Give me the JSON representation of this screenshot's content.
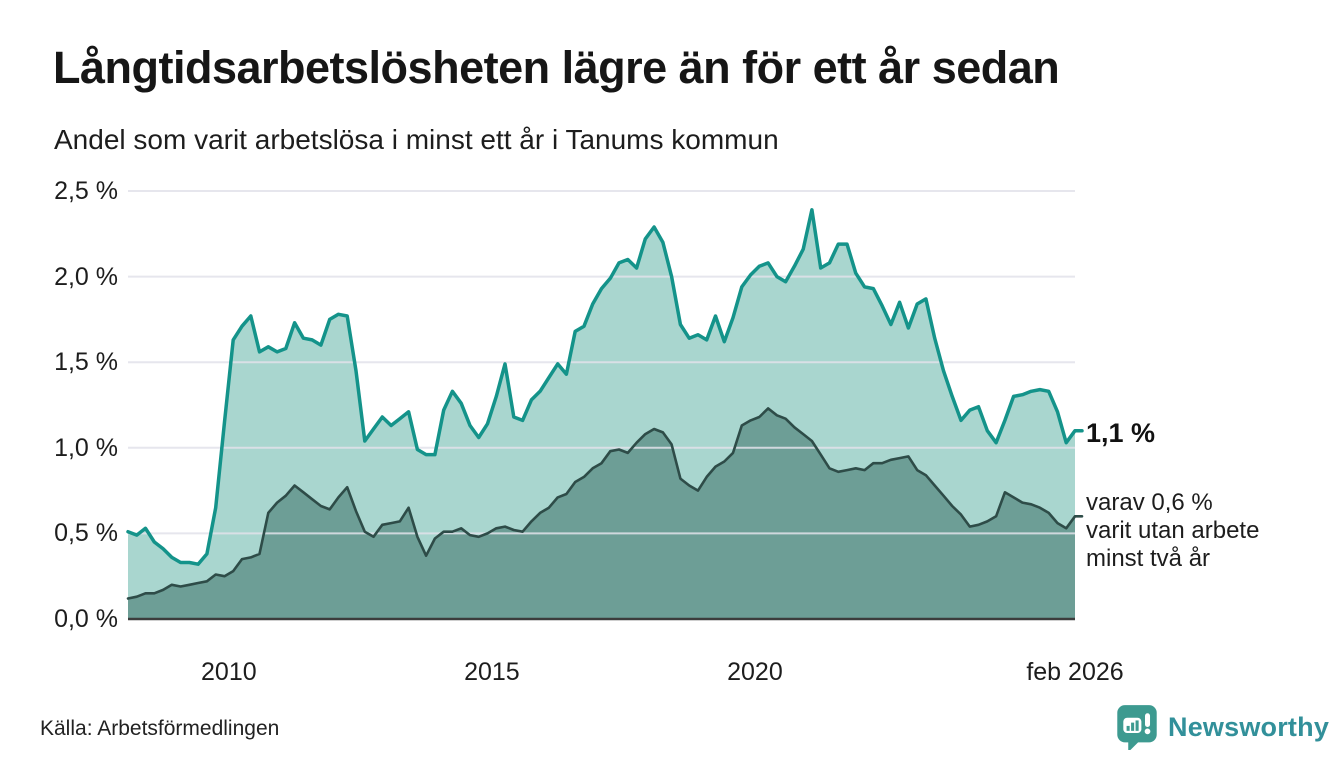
{
  "header": {
    "title": "Långtidsarbetslösheten lägre än för ett år sedan",
    "subtitle": "Andel som varit arbetslösa i minst ett år i Tanums kommun"
  },
  "annotations": {
    "end_value_total": "1,1 %",
    "end_value_two_years_lines": [
      "varav 0,6 %",
      "varit utan arbete",
      "minst två år"
    ]
  },
  "footer": {
    "source": "Källa: Arbetsförmedlingen",
    "brand": {
      "name": "Newsworthy",
      "icon": "newsworthy-speech-bubble-bar-chart-icon"
    }
  },
  "colors": {
    "total_line": "#14938a",
    "total_fill": "#a9d6cf",
    "two_year_line": "#2e4c48",
    "two_year_fill": "#6d9e96",
    "gridline": "rgba(226,226,234,0.85)",
    "baseline": "#3c3c3c",
    "text": "#1d1d1d",
    "brand_icon": "#3d9a90",
    "brand_text": "#32909a"
  },
  "chart_data": {
    "type": "area",
    "title": "Långtidsarbetslösheten lägre än för ett år sedan",
    "subtitle": "Andel som varit arbetslösa i minst ett år i Tanums kommun",
    "unit": "%",
    "grid": true,
    "x_start": "feb 2008",
    "x_end": "feb 2026",
    "sample_interval_months": 2,
    "total_months": 216,
    "x_axis": {
      "ticks": [
        {
          "label": "2010",
          "month": 23
        },
        {
          "label": "2015",
          "month": 83
        },
        {
          "label": "2020",
          "month": 143
        },
        {
          "label": "feb 2026",
          "month": 216
        }
      ]
    },
    "y_axis": {
      "min": 0,
      "max": 2.5,
      "ticks": [
        {
          "label": "2,5 %",
          "value": 2.5
        },
        {
          "label": "2,0 %",
          "value": 2.0
        },
        {
          "label": "1,5 %",
          "value": 1.5
        },
        {
          "label": "1,0 %",
          "value": 1.0
        },
        {
          "label": "0,5 %",
          "value": 0.5
        },
        {
          "label": "0,0 %",
          "value": 0.0
        }
      ]
    },
    "series": [
      {
        "name": "Andel som varit arbetslösa i minst ett år",
        "end_label": "1,1 %",
        "end_value": 1.1,
        "values": [
          0.51,
          0.49,
          0.53,
          0.45,
          0.41,
          0.36,
          0.33,
          0.33,
          0.32,
          0.38,
          0.65,
          1.15,
          1.63,
          1.71,
          1.77,
          1.56,
          1.59,
          1.56,
          1.58,
          1.73,
          1.64,
          1.63,
          1.6,
          1.75,
          1.78,
          1.77,
          1.45,
          1.04,
          1.11,
          1.18,
          1.13,
          1.17,
          1.21,
          0.99,
          0.96,
          0.96,
          1.22,
          1.33,
          1.26,
          1.13,
          1.06,
          1.14,
          1.3,
          1.49,
          1.18,
          1.16,
          1.28,
          1.33,
          1.41,
          1.49,
          1.43,
          1.68,
          1.71,
          1.84,
          1.93,
          1.99,
          2.08,
          2.1,
          2.05,
          2.22,
          2.29,
          2.2,
          2.0,
          1.72,
          1.64,
          1.66,
          1.63,
          1.77,
          1.62,
          1.76,
          1.94,
          2.01,
          2.06,
          2.08,
          2.0,
          1.97,
          2.06,
          2.16,
          2.39,
          2.05,
          2.08,
          2.19,
          2.19,
          2.02,
          1.94,
          1.93,
          1.83,
          1.72,
          1.85,
          1.7,
          1.84,
          1.87,
          1.64,
          1.45,
          1.3,
          1.16,
          1.22,
          1.24,
          1.1,
          1.03,
          1.16,
          1.3,
          1.31,
          1.33,
          1.34,
          1.33,
          1.21,
          1.03,
          1.1
        ]
      },
      {
        "name": "varav arbetslösa minst två år",
        "end_label": "varav 0,6 % varit utan arbete minst två år",
        "end_value": 0.6,
        "values": [
          0.12,
          0.13,
          0.15,
          0.15,
          0.17,
          0.2,
          0.19,
          0.2,
          0.21,
          0.22,
          0.26,
          0.25,
          0.28,
          0.35,
          0.36,
          0.38,
          0.62,
          0.68,
          0.72,
          0.78,
          0.74,
          0.7,
          0.66,
          0.64,
          0.71,
          0.77,
          0.63,
          0.51,
          0.48,
          0.55,
          0.56,
          0.57,
          0.65,
          0.48,
          0.37,
          0.47,
          0.51,
          0.51,
          0.53,
          0.49,
          0.48,
          0.5,
          0.53,
          0.54,
          0.52,
          0.51,
          0.57,
          0.62,
          0.65,
          0.71,
          0.73,
          0.8,
          0.83,
          0.88,
          0.91,
          0.98,
          0.99,
          0.97,
          1.03,
          1.08,
          1.11,
          1.09,
          1.02,
          0.82,
          0.78,
          0.75,
          0.83,
          0.89,
          0.92,
          0.97,
          1.13,
          1.16,
          1.18,
          1.23,
          1.19,
          1.17,
          1.12,
          1.08,
          1.04,
          0.96,
          0.88,
          0.86,
          0.87,
          0.88,
          0.87,
          0.91,
          0.91,
          0.93,
          0.94,
          0.95,
          0.87,
          0.84,
          0.78,
          0.72,
          0.66,
          0.61,
          0.54,
          0.55,
          0.57,
          0.6,
          0.74,
          0.71,
          0.68,
          0.67,
          0.65,
          0.62,
          0.56,
          0.53,
          0.6
        ]
      }
    ]
  }
}
